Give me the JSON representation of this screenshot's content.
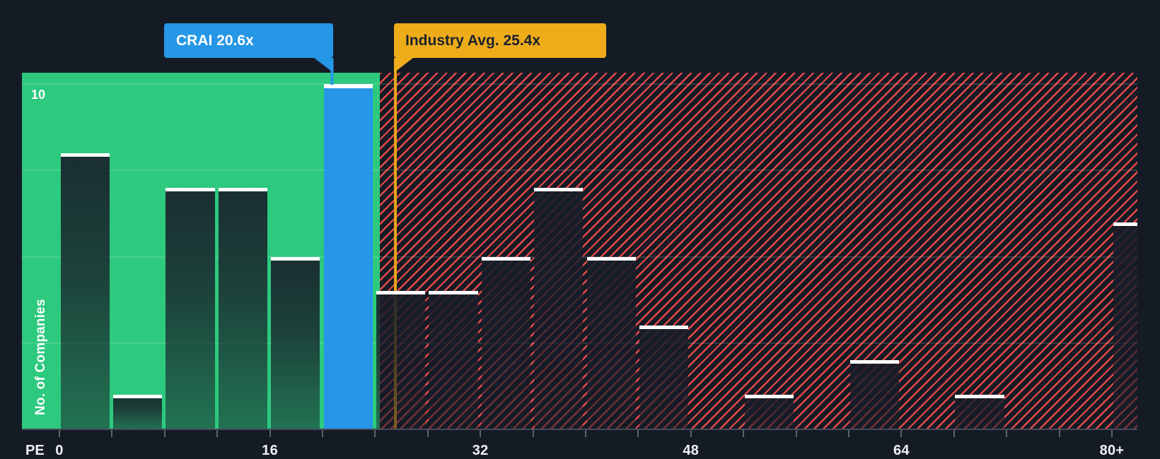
{
  "colors": {
    "bg": "#151b25",
    "green_zone": "#2dc97e",
    "hatch_red": "#e6494b",
    "company_blue": "#2697e6",
    "industry_orange": "#eeac1a",
    "industry_line": "#e7a416",
    "cap_white": "#ffffff",
    "bar_top": "rgba(23,29,40,0.9)",
    "bar_mid": "rgba(23,29,40,0.78)",
    "bar_bottom": "rgba(23,29,40,0.5)",
    "grid_line": "rgba(255,255,255,0.13)",
    "tick": "#5d6470",
    "baseline": "#434b57",
    "axis_text": "#eef1f4",
    "dark_text": "#1a212d"
  },
  "chart_data": {
    "type": "bar",
    "subtype": "histogram",
    "xlabel": "PE",
    "ylabel": "No. of Companies",
    "ylim": [
      0,
      10
    ],
    "y_top_tick_label": "10",
    "gridline_values": [
      2.5,
      5,
      7.5,
      10
    ],
    "grid": "on",
    "bin_width": 4,
    "x_ticks": [
      {
        "value": 0,
        "label": "0"
      },
      {
        "value": 16,
        "label": "16"
      },
      {
        "value": 32,
        "label": "32"
      },
      {
        "value": 48,
        "label": "48"
      },
      {
        "value": 64,
        "label": "64"
      },
      {
        "value": 80,
        "label": "80+"
      }
    ],
    "bins": [
      {
        "start": 0,
        "count": 8
      },
      {
        "start": 4,
        "count": 1
      },
      {
        "start": 8,
        "count": 7
      },
      {
        "start": 12,
        "count": 7
      },
      {
        "start": 16,
        "count": 5
      },
      {
        "start": 20,
        "count": 10,
        "highlight": true
      },
      {
        "start": 24,
        "count": 4
      },
      {
        "start": 28,
        "count": 4
      },
      {
        "start": 32,
        "count": 5
      },
      {
        "start": 36,
        "count": 7
      },
      {
        "start": 40,
        "count": 5
      },
      {
        "start": 44,
        "count": 3
      },
      {
        "start": 48,
        "count": 0
      },
      {
        "start": 52,
        "count": 1
      },
      {
        "start": 56,
        "count": 0
      },
      {
        "start": 60,
        "count": 2
      },
      {
        "start": 64,
        "count": 0
      },
      {
        "start": 68,
        "count": 1
      },
      {
        "start": 72,
        "count": 0
      },
      {
        "start": 76,
        "count": 0
      },
      {
        "start": 80,
        "count": 6,
        "open_ended": true
      }
    ],
    "company": {
      "ticker": "CRAI",
      "pe": 20.6,
      "label": "CRAI 20.6x"
    },
    "industry_avg": {
      "pe": 25.4,
      "label": "Industry Avg. 25.4x"
    },
    "zones": {
      "left_zone": "solid green (PE 0 to ~24)",
      "right_zone": "red diagonal hatch (PE ~24 to 80+)"
    },
    "legend_position": "none"
  }
}
